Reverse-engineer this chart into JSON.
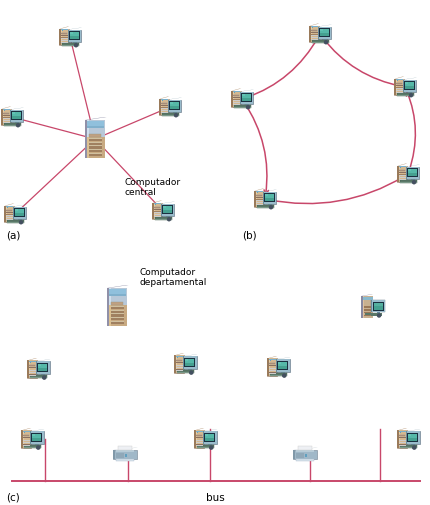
{
  "bg_color": "#ffffff",
  "line_color": "#c8476a",
  "arrow_color": "#c8476a",
  "label_a": "(a)",
  "label_b": "(b)",
  "label_c": "(c)",
  "label_bus": "bus",
  "label_central": "Computador\ncentral",
  "label_departamental": "Computador\ndepartamental",
  "fig_width": 4.31,
  "fig_height": 5.06,
  "dpi": 100,
  "tower_body_color": "#c4a07a",
  "tower_highlight": "#d4b898",
  "tower_shadow": "#a08060",
  "tower_blue_top": "#7ab0cc",
  "monitor_body": "#8ab0c0",
  "monitor_screen": "#60b8a8",
  "monitor_dark": "#2a4858",
  "kbd_color": "#6a8a7a",
  "server_body": "#c0b0a0",
  "server_blue": "#90b8d0",
  "printer_body": "#a0b8c8",
  "printer_light": "#c8d8e0"
}
